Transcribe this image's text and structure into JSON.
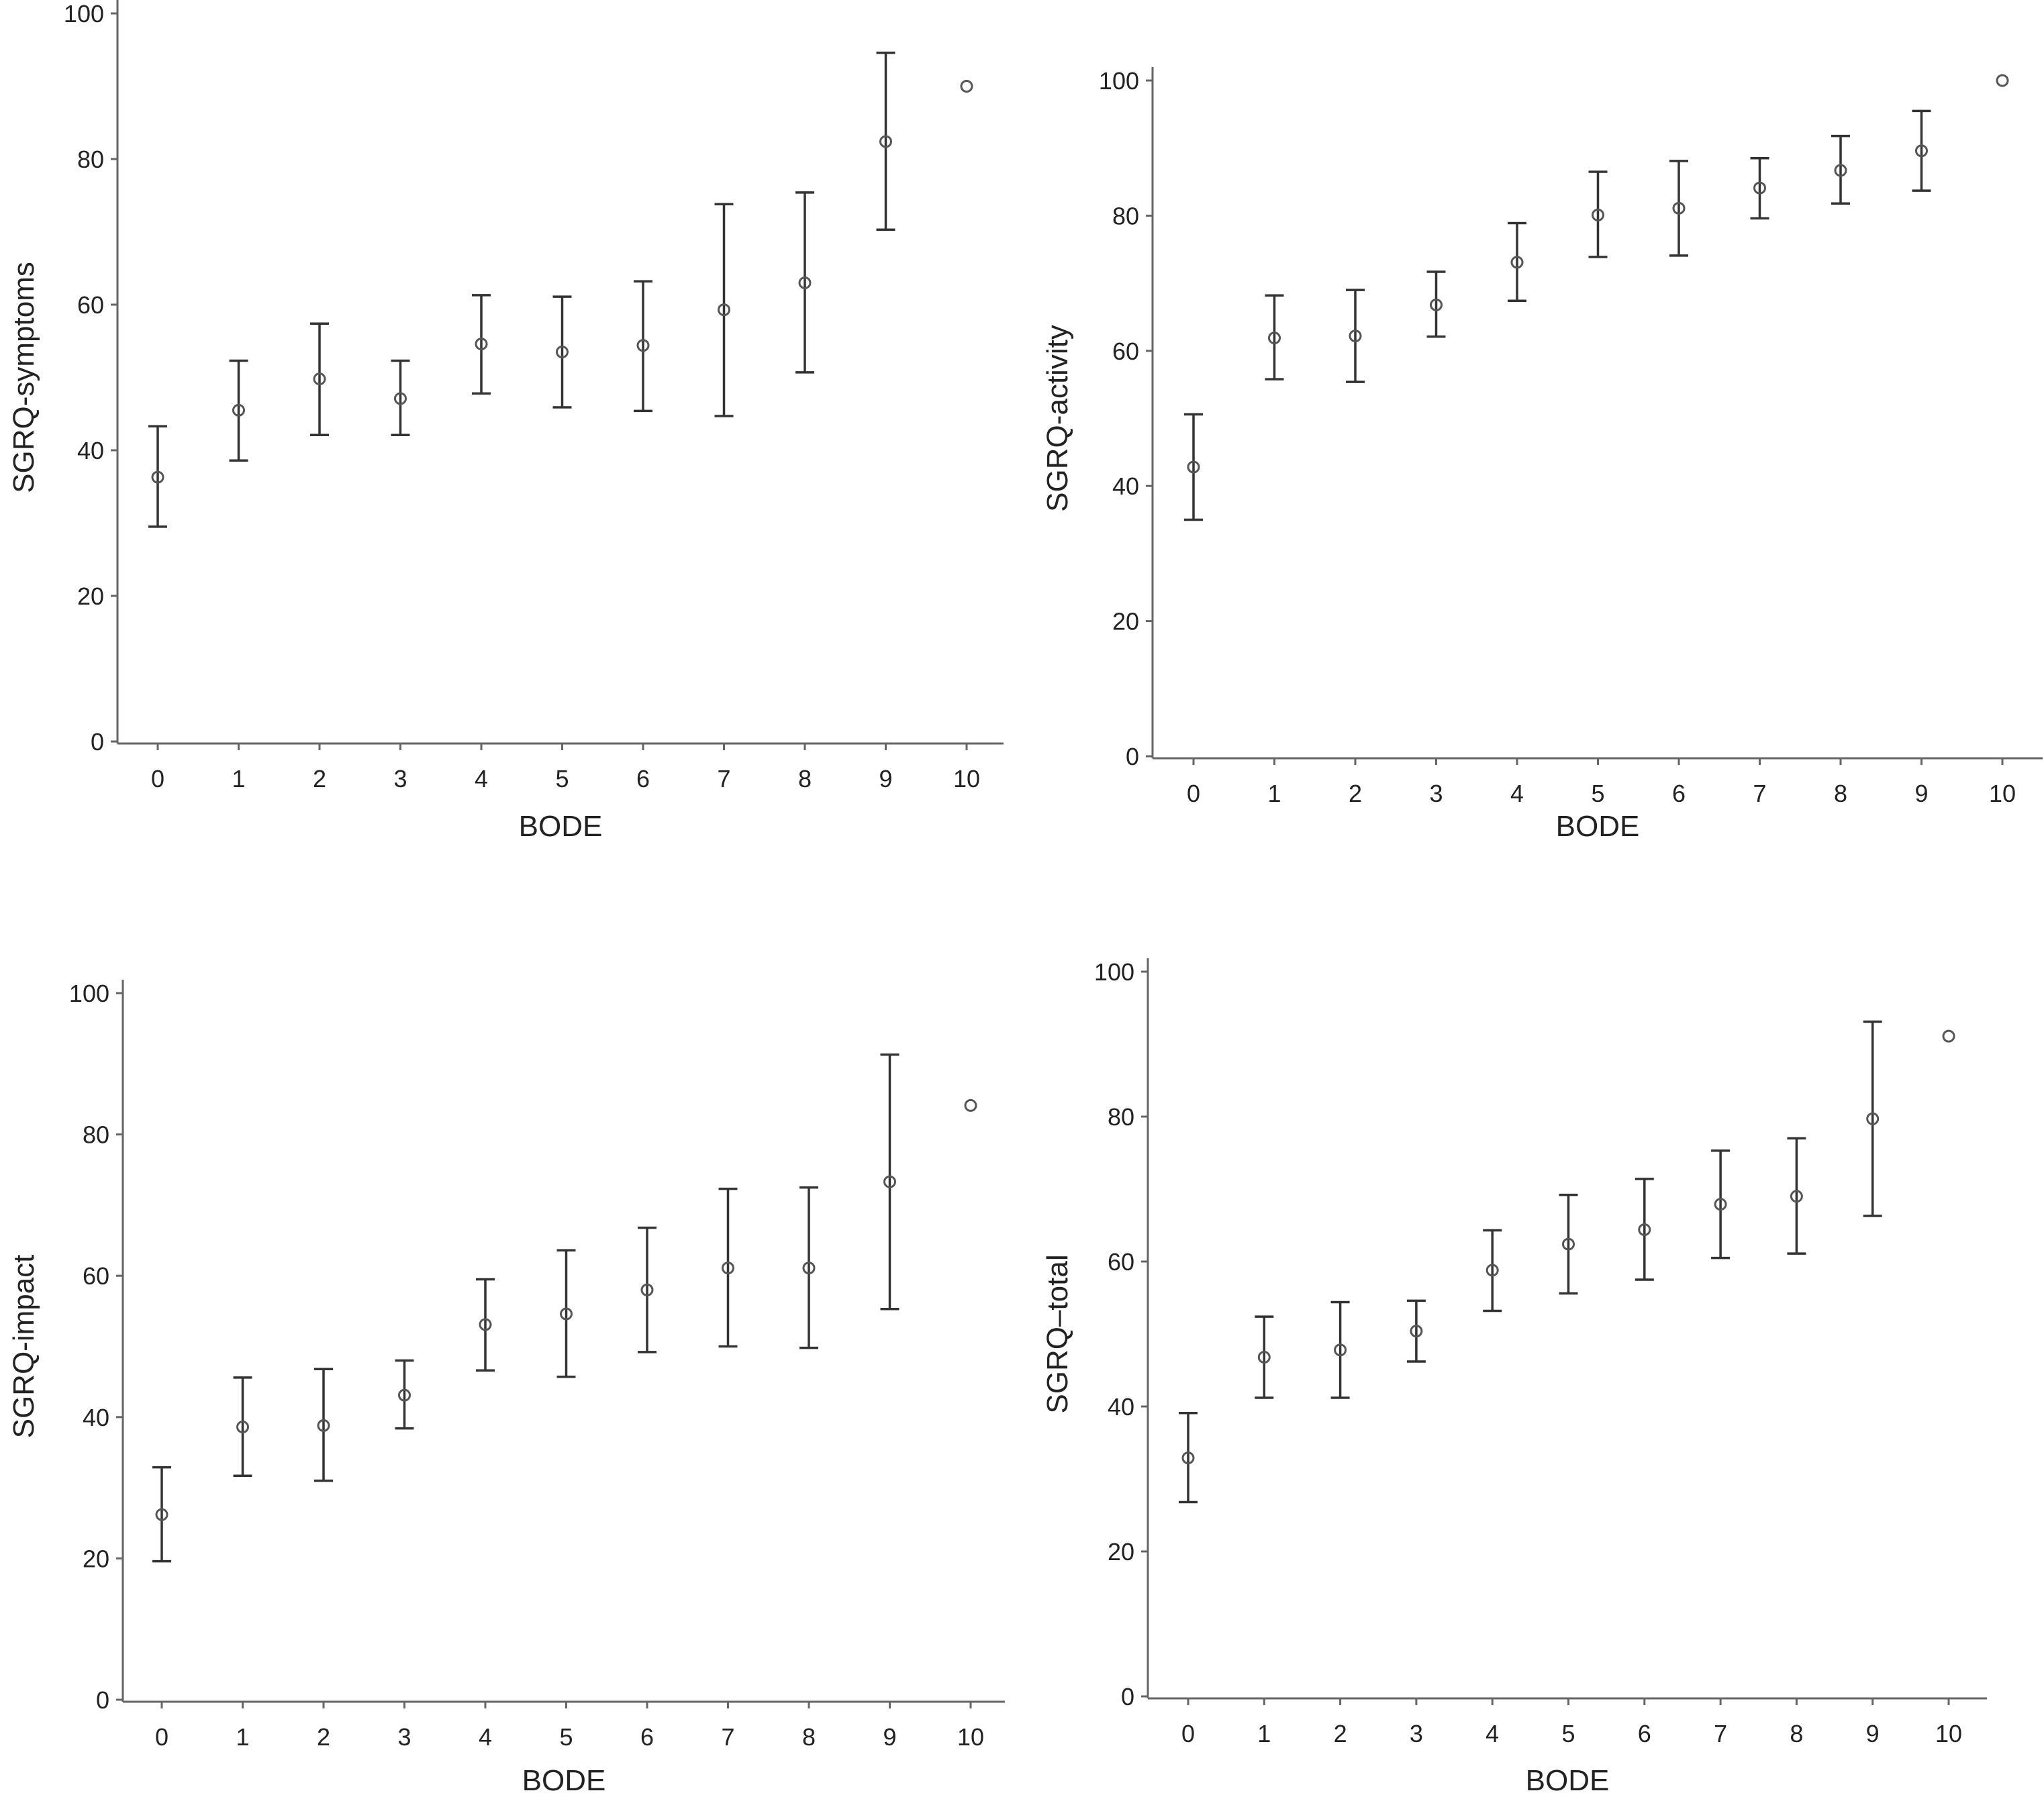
{
  "chart_data": [
    {
      "type": "scatter",
      "xlabel": "BODE",
      "ylabel": "SGRQ-symptoms",
      "xlim": [
        0,
        10
      ],
      "ylim": [
        0,
        100
      ],
      "xticks": [
        "0",
        "1",
        "2",
        "3",
        "4",
        "5",
        "6",
        "7",
        "8",
        "9",
        "10"
      ],
      "yticks": [
        "0",
        "20",
        "40",
        "60",
        "80",
        "100"
      ],
      "points": [
        {
          "x": 0,
          "mean": 36.3,
          "lower": 29.5,
          "upper": 43.3
        },
        {
          "x": 1,
          "mean": 45.5,
          "lower": 38.6,
          "upper": 52.3
        },
        {
          "x": 2,
          "mean": 49.8,
          "lower": 42.1,
          "upper": 57.4
        },
        {
          "x": 3,
          "mean": 47.1,
          "lower": 42.1,
          "upper": 52.3
        },
        {
          "x": 4,
          "mean": 54.6,
          "lower": 47.8,
          "upper": 61.3
        },
        {
          "x": 5,
          "mean": 53.5,
          "lower": 45.9,
          "upper": 61.1
        },
        {
          "x": 6,
          "mean": 54.4,
          "lower": 45.4,
          "upper": 63.2
        },
        {
          "x": 7,
          "mean": 59.3,
          "lower": 44.7,
          "upper": 73.8
        },
        {
          "x": 8,
          "mean": 63.0,
          "lower": 50.7,
          "upper": 75.4
        },
        {
          "x": 9,
          "mean": 82.4,
          "lower": 70.3,
          "upper": 94.6
        },
        {
          "x": 10,
          "mean": 90.0
        }
      ]
    },
    {
      "type": "scatter",
      "xlabel": "BODE",
      "ylabel": "SGRQ-activity",
      "xlim": [
        0,
        10
      ],
      "ylim": [
        0,
        100
      ],
      "xticks": [
        "0",
        "1",
        "2",
        "3",
        "4",
        "5",
        "6",
        "7",
        "8",
        "9",
        "10"
      ],
      "yticks": [
        "0",
        "20",
        "40",
        "60",
        "80",
        "100"
      ],
      "points": [
        {
          "x": 0,
          "mean": 42.8,
          "lower": 35.0,
          "upper": 50.6
        },
        {
          "x": 1,
          "mean": 61.9,
          "lower": 55.8,
          "upper": 68.2
        },
        {
          "x": 2,
          "mean": 62.2,
          "lower": 55.4,
          "upper": 69.0
        },
        {
          "x": 3,
          "mean": 66.8,
          "lower": 62.1,
          "upper": 71.7
        },
        {
          "x": 4,
          "mean": 73.1,
          "lower": 67.4,
          "upper": 78.9
        },
        {
          "x": 5,
          "mean": 80.1,
          "lower": 73.9,
          "upper": 86.5
        },
        {
          "x": 6,
          "mean": 81.1,
          "lower": 74.1,
          "upper": 88.1
        },
        {
          "x": 7,
          "mean": 84.1,
          "lower": 79.6,
          "upper": 88.5
        },
        {
          "x": 8,
          "mean": 86.7,
          "lower": 81.8,
          "upper": 91.8
        },
        {
          "x": 9,
          "mean": 89.6,
          "lower": 83.7,
          "upper": 95.5
        },
        {
          "x": 10,
          "mean": 100.0
        }
      ]
    },
    {
      "type": "scatter",
      "xlabel": "BODE",
      "ylabel": "SGRQ-impact",
      "xlim": [
        0,
        10
      ],
      "ylim": [
        0,
        100
      ],
      "xticks": [
        "0",
        "1",
        "2",
        "3",
        "4",
        "5",
        "6",
        "7",
        "8",
        "9",
        "10"
      ],
      "yticks": [
        "0",
        "20",
        "40",
        "60",
        "80",
        "100"
      ],
      "points": [
        {
          "x": 0,
          "mean": 26.2,
          "lower": 19.6,
          "upper": 32.9
        },
        {
          "x": 1,
          "mean": 38.6,
          "lower": 31.7,
          "upper": 45.6
        },
        {
          "x": 2,
          "mean": 38.8,
          "lower": 31.0,
          "upper": 46.8
        },
        {
          "x": 3,
          "mean": 43.1,
          "lower": 38.4,
          "upper": 48.0
        },
        {
          "x": 4,
          "mean": 53.1,
          "lower": 46.6,
          "upper": 59.5
        },
        {
          "x": 5,
          "mean": 54.6,
          "lower": 45.7,
          "upper": 63.6
        },
        {
          "x": 6,
          "mean": 58.0,
          "lower": 49.2,
          "upper": 66.8
        },
        {
          "x": 7,
          "mean": 61.1,
          "lower": 50.0,
          "upper": 72.3
        },
        {
          "x": 8,
          "mean": 61.1,
          "lower": 49.8,
          "upper": 72.5
        },
        {
          "x": 9,
          "mean": 73.3,
          "lower": 55.3,
          "upper": 91.3
        },
        {
          "x": 10,
          "mean": 84.1
        }
      ]
    },
    {
      "type": "scatter",
      "xlabel": "BODE",
      "ylabel": "SGRQ–total",
      "xlim": [
        0,
        10
      ],
      "ylim": [
        0,
        100
      ],
      "xticks": [
        "0",
        "1",
        "2",
        "3",
        "4",
        "5",
        "6",
        "7",
        "8",
        "9",
        "10"
      ],
      "yticks": [
        "0",
        "20",
        "40",
        "60",
        "80",
        "100"
      ],
      "points": [
        {
          "x": 0,
          "mean": 32.9,
          "lower": 26.8,
          "upper": 39.1
        },
        {
          "x": 1,
          "mean": 46.8,
          "lower": 41.2,
          "upper": 52.4
        },
        {
          "x": 2,
          "mean": 47.8,
          "lower": 41.2,
          "upper": 54.4
        },
        {
          "x": 3,
          "mean": 50.4,
          "lower": 46.2,
          "upper": 54.6
        },
        {
          "x": 4,
          "mean": 58.8,
          "lower": 53.2,
          "upper": 64.3
        },
        {
          "x": 5,
          "mean": 62.4,
          "lower": 55.6,
          "upper": 69.2
        },
        {
          "x": 6,
          "mean": 64.4,
          "lower": 57.5,
          "upper": 71.4
        },
        {
          "x": 7,
          "mean": 67.9,
          "lower": 60.5,
          "upper": 75.3
        },
        {
          "x": 8,
          "mean": 69.0,
          "lower": 61.1,
          "upper": 77.0
        },
        {
          "x": 9,
          "mean": 79.7,
          "lower": 66.3,
          "upper": 93.1
        },
        {
          "x": 10,
          "mean": 91.1
        }
      ]
    }
  ]
}
